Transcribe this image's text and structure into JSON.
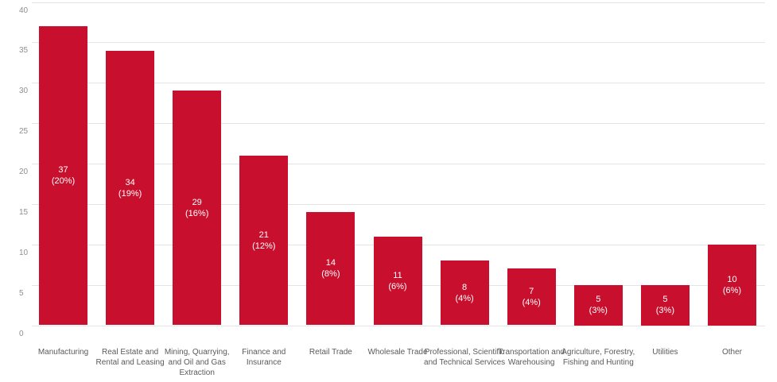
{
  "chart_data": {
    "type": "bar",
    "title": "",
    "xlabel": "",
    "ylabel": "",
    "categories": [
      "Manufacturing",
      "Real Estate and\nRental and Leasing",
      "Mining, Quarrying,\nand Oil and Gas\nExtraction",
      "Finance and\nInsurance",
      "Retail Trade",
      "Wholesale Trade",
      "Professional, Scientific\nand Technical Services",
      "Transportation and\nWarehousing",
      "Agriculture, Forestry,\nFishing and Hunting",
      "Utilities",
      "Other"
    ],
    "values": [
      37,
      34,
      29,
      21,
      14,
      11,
      8,
      7,
      5,
      5,
      10
    ],
    "percents": [
      "20%",
      "19%",
      "16%",
      "12%",
      "8%",
      "6%",
      "4%",
      "4%",
      "3%",
      "3%",
      "6%"
    ],
    "ylim": [
      0,
      40
    ],
    "yticks": [
      0,
      5,
      10,
      15,
      20,
      25,
      30,
      35,
      40
    ],
    "grid": "horizontal",
    "legend": "none",
    "colors": {
      "bar": "#C8102E",
      "grid": "#E4E4E4",
      "y_tick_text": "#8F8F8F",
      "category_text": "#5A5A5A",
      "value_text": "#FFFFFF",
      "background": "#FFFFFF"
    }
  }
}
